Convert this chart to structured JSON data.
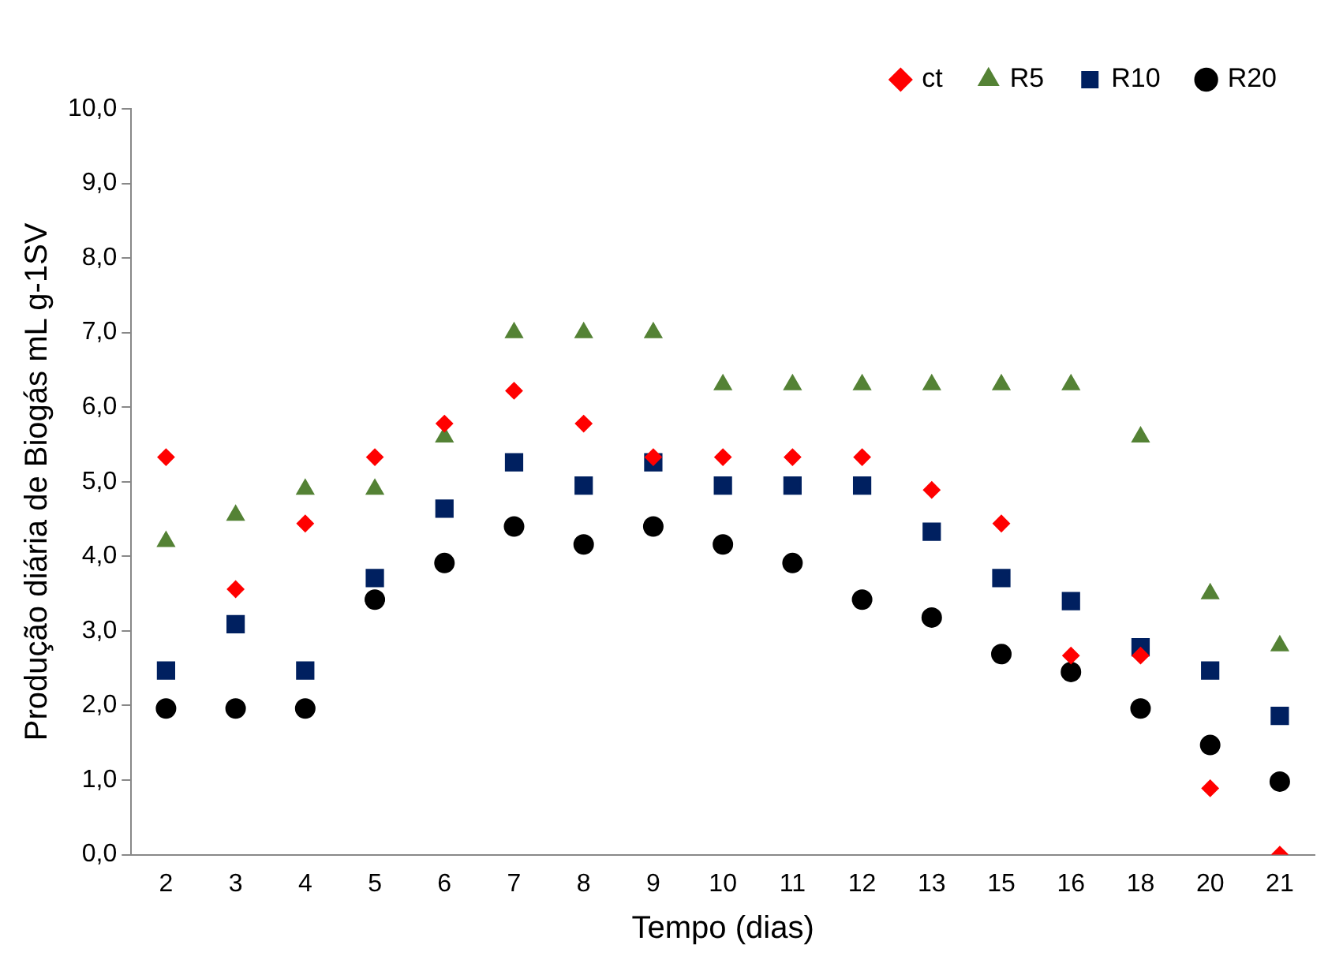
{
  "chart_data": {
    "type": "scatter",
    "xlabel": "Tempo (dias)",
    "ylabel": "Produção diária de Biogás mL g-1SV",
    "categories": [
      "2",
      "3",
      "4",
      "5",
      "6",
      "7",
      "8",
      "9",
      "10",
      "11",
      "12",
      "13",
      "15",
      "16",
      "18",
      "20",
      "21"
    ],
    "ylim": [
      0,
      10
    ],
    "yticks": [
      {
        "value": 0,
        "label": "0,0"
      },
      {
        "value": 1,
        "label": "1,0"
      },
      {
        "value": 2,
        "label": "2,0"
      },
      {
        "value": 3,
        "label": "3,0"
      },
      {
        "value": 4,
        "label": "4,0"
      },
      {
        "value": 5,
        "label": "5,0"
      },
      {
        "value": 6,
        "label": "6,0"
      },
      {
        "value": 7,
        "label": "7,0"
      },
      {
        "value": 8,
        "label": "8,0"
      },
      {
        "value": 9,
        "label": "9,0"
      },
      {
        "value": 10,
        "label": "10,0"
      }
    ],
    "legend": "top right",
    "grid": false,
    "series": [
      {
        "name": "ct",
        "color": "#ff0000",
        "marker": "diamond",
        "values": [
          5.33,
          3.56,
          4.44,
          5.33,
          5.78,
          6.22,
          5.78,
          5.33,
          5.33,
          5.33,
          5.33,
          4.89,
          4.44,
          2.67,
          2.67,
          0.89,
          0.0
        ]
      },
      {
        "name": "R5",
        "color": "#548235",
        "marker": "triangle",
        "values": [
          4.2,
          4.55,
          4.9,
          4.9,
          5.6,
          7.0,
          7.0,
          7.0,
          6.3,
          6.3,
          6.3,
          6.3,
          6.3,
          6.3,
          5.6,
          3.5,
          2.8
        ]
      },
      {
        "name": "R10",
        "color": "#002060",
        "marker": "square",
        "values": [
          2.47,
          3.09,
          2.47,
          3.71,
          4.64,
          5.26,
          4.95,
          5.26,
          4.95,
          4.95,
          4.95,
          4.33,
          3.71,
          3.4,
          2.78,
          2.47,
          1.86
        ]
      },
      {
        "name": "R20",
        "color": "#000000",
        "marker": "circle",
        "values": [
          1.96,
          1.96,
          1.96,
          3.42,
          3.91,
          4.4,
          4.16,
          4.4,
          4.16,
          3.91,
          3.42,
          3.18,
          2.69,
          2.45,
          1.96,
          1.47,
          0.98
        ]
      }
    ]
  }
}
